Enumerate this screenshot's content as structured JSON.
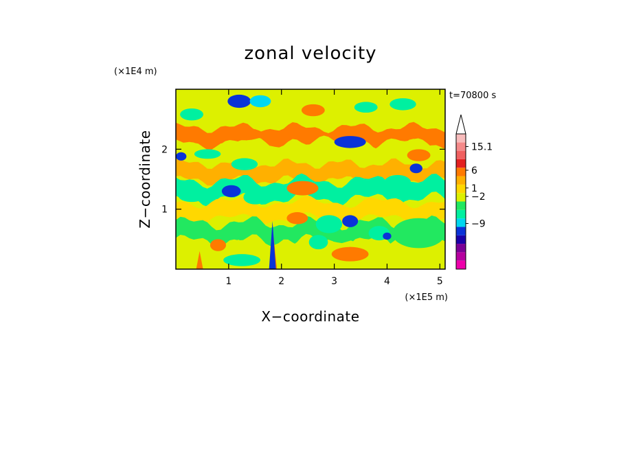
{
  "chart_data": {
    "type": "heatmap",
    "title": "zonal velocity",
    "xlabel": "X−coordinate",
    "ylabel": "Z−coordinate",
    "x_unit": "(×1E5 m)",
    "y_unit": "(×1E4 m)",
    "time_label": "t=70800 s",
    "xlim": [
      0,
      5.1
    ],
    "ylim": [
      0,
      3.0
    ],
    "x_ticks": [
      1,
      2,
      3,
      4,
      5
    ],
    "y_ticks": [
      1,
      2
    ],
    "x_tick_labels": [
      "1",
      "2",
      "3",
      "4",
      "5"
    ],
    "y_tick_labels": [
      "1",
      "2"
    ],
    "colorbar": {
      "extend_top": true,
      "colors": [
        "#ee00ab",
        "#b6009f",
        "#7a0096",
        "#1a00a8",
        "#0a33d8",
        "#00d7f0",
        "#00f0a0",
        "#22e860",
        "#ddf000",
        "#ffd800",
        "#ffb000",
        "#ff7a00",
        "#e32121",
        "#f06060",
        "#f58a8a",
        "#f8bcbc"
      ],
      "labels": [
        {
          "text": "15.1",
          "level": 14.5
        },
        {
          "text": "6",
          "level": 11.7
        },
        {
          "text": "1",
          "level": 9.6
        },
        {
          "text": "−2",
          "level": 8.6
        },
        {
          "text": "−9",
          "level": 5.4
        }
      ]
    },
    "bands": [
      {
        "z": 2.65,
        "amp": 0.07,
        "w": 1.6,
        "ph": 0.0,
        "th": 0.33,
        "c": 8
      },
      {
        "z": 2.22,
        "amp": 0.06,
        "w": 1.9,
        "ph": 1.1,
        "th": 0.28,
        "c": 11
      },
      {
        "z": 1.95,
        "amp": 0.08,
        "w": 1.4,
        "ph": 2.2,
        "th": 0.3,
        "c": 8
      },
      {
        "z": 1.62,
        "amp": 0.06,
        "w": 2.1,
        "ph": 0.6,
        "th": 0.28,
        "c": 10
      },
      {
        "z": 1.32,
        "amp": 0.08,
        "w": 1.7,
        "ph": 1.8,
        "th": 0.3,
        "c": 6
      },
      {
        "z": 0.98,
        "amp": 0.07,
        "w": 1.5,
        "ph": 2.9,
        "th": 0.28,
        "c": 9
      },
      {
        "z": 0.62,
        "amp": 0.08,
        "w": 1.8,
        "ph": 0.3,
        "th": 0.3,
        "c": 7
      },
      {
        "z": 0.25,
        "amp": 0.06,
        "w": 2.0,
        "ph": 1.4,
        "th": 0.32,
        "c": 8
      }
    ],
    "blobs": [
      {
        "x": 1.2,
        "z": 2.8,
        "rx": 0.22,
        "rz": 0.11,
        "c": 4
      },
      {
        "x": 1.6,
        "z": 2.8,
        "rx": 0.2,
        "rz": 0.1,
        "c": 5
      },
      {
        "x": 0.3,
        "z": 2.58,
        "rx": 0.22,
        "rz": 0.1,
        "c": 6
      },
      {
        "x": 3.6,
        "z": 2.7,
        "rx": 0.22,
        "rz": 0.09,
        "c": 6
      },
      {
        "x": 4.3,
        "z": 2.75,
        "rx": 0.25,
        "rz": 0.1,
        "c": 6
      },
      {
        "x": 3.3,
        "z": 2.12,
        "rx": 0.3,
        "rz": 0.1,
        "c": 4
      },
      {
        "x": 2.6,
        "z": 2.65,
        "rx": 0.22,
        "rz": 0.1,
        "c": 11
      },
      {
        "x": 1.3,
        "z": 2.25,
        "rx": 0.35,
        "rz": 0.1,
        "c": 11
      },
      {
        "x": 0.1,
        "z": 1.88,
        "rx": 0.1,
        "rz": 0.07,
        "c": 4
      },
      {
        "x": 0.6,
        "z": 1.92,
        "rx": 0.25,
        "rz": 0.08,
        "c": 6
      },
      {
        "x": 1.3,
        "z": 1.75,
        "rx": 0.25,
        "rz": 0.1,
        "c": 6
      },
      {
        "x": 4.55,
        "z": 1.68,
        "rx": 0.12,
        "rz": 0.08,
        "c": 4
      },
      {
        "x": 4.2,
        "z": 1.45,
        "rx": 0.25,
        "rz": 0.12,
        "c": 6
      },
      {
        "x": 4.6,
        "z": 1.9,
        "rx": 0.22,
        "rz": 0.1,
        "c": 11
      },
      {
        "x": 1.05,
        "z": 1.3,
        "rx": 0.18,
        "rz": 0.1,
        "c": 4
      },
      {
        "x": 1.5,
        "z": 1.2,
        "rx": 0.22,
        "rz": 0.12,
        "c": 6
      },
      {
        "x": 0.3,
        "z": 1.22,
        "rx": 0.25,
        "rz": 0.1,
        "c": 6
      },
      {
        "x": 2.4,
        "z": 1.35,
        "rx": 0.3,
        "rz": 0.12,
        "c": 11
      },
      {
        "x": 2.9,
        "z": 0.75,
        "rx": 0.25,
        "rz": 0.15,
        "c": 6
      },
      {
        "x": 3.3,
        "z": 0.8,
        "rx": 0.15,
        "rz": 0.1,
        "c": 4
      },
      {
        "x": 2.7,
        "z": 0.45,
        "rx": 0.18,
        "rz": 0.12,
        "c": 6
      },
      {
        "x": 3.85,
        "z": 0.6,
        "rx": 0.2,
        "rz": 0.12,
        "c": 6
      },
      {
        "x": 4.0,
        "z": 0.55,
        "rx": 0.08,
        "rz": 0.06,
        "c": 4
      },
      {
        "x": 4.6,
        "z": 0.6,
        "rx": 0.5,
        "rz": 0.25,
        "c": 7
      },
      {
        "x": 3.3,
        "z": 0.25,
        "rx": 0.35,
        "rz": 0.12,
        "c": 11
      },
      {
        "x": 1.25,
        "z": 0.15,
        "rx": 0.35,
        "rz": 0.1,
        "c": 6
      },
      {
        "x": 2.3,
        "z": 0.85,
        "rx": 0.2,
        "rz": 0.1,
        "c": 11
      },
      {
        "x": 0.8,
        "z": 0.4,
        "rx": 0.15,
        "rz": 0.1,
        "c": 11
      }
    ],
    "spikes": [
      {
        "x": 0.45,
        "z": 0.3,
        "c": 11
      },
      {
        "x": 1.85,
        "z": 0.55,
        "c": 11
      },
      {
        "x": 1.83,
        "z": 0.8,
        "c": 4
      }
    ]
  }
}
